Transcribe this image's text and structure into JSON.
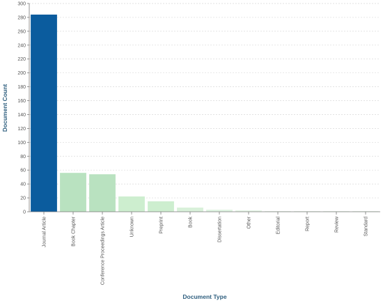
{
  "chart_data": {
    "type": "bar",
    "categories": [
      "Journal Article",
      "Book Chapter",
      "Conference Proceedings Article",
      "Unknown",
      "Preprint",
      "Book",
      "Dissertation",
      "Other",
      "Editorial",
      "Report",
      "Review",
      "Standard"
    ],
    "values": [
      284,
      56,
      54,
      22,
      15,
      6,
      3,
      2,
      1,
      1,
      1,
      1
    ],
    "colors": [
      "#0b5c9e",
      "#b9e2c0",
      "#b9e2c0",
      "#cdeecf",
      "#cdeecf",
      "#d9f1da",
      "#e0f4e2",
      "#e5f6e6",
      "#e8f6e9",
      "#e8f6e9",
      "#e8f6e9",
      "#e8f6e9"
    ],
    "xlabel": "Document Type",
    "ylabel": "Document Count",
    "ylim": [
      0,
      300
    ],
    "yticks": [
      0,
      20,
      40,
      60,
      80,
      100,
      120,
      140,
      160,
      180,
      200,
      220,
      240,
      260,
      280,
      300
    ],
    "grid": true
  }
}
